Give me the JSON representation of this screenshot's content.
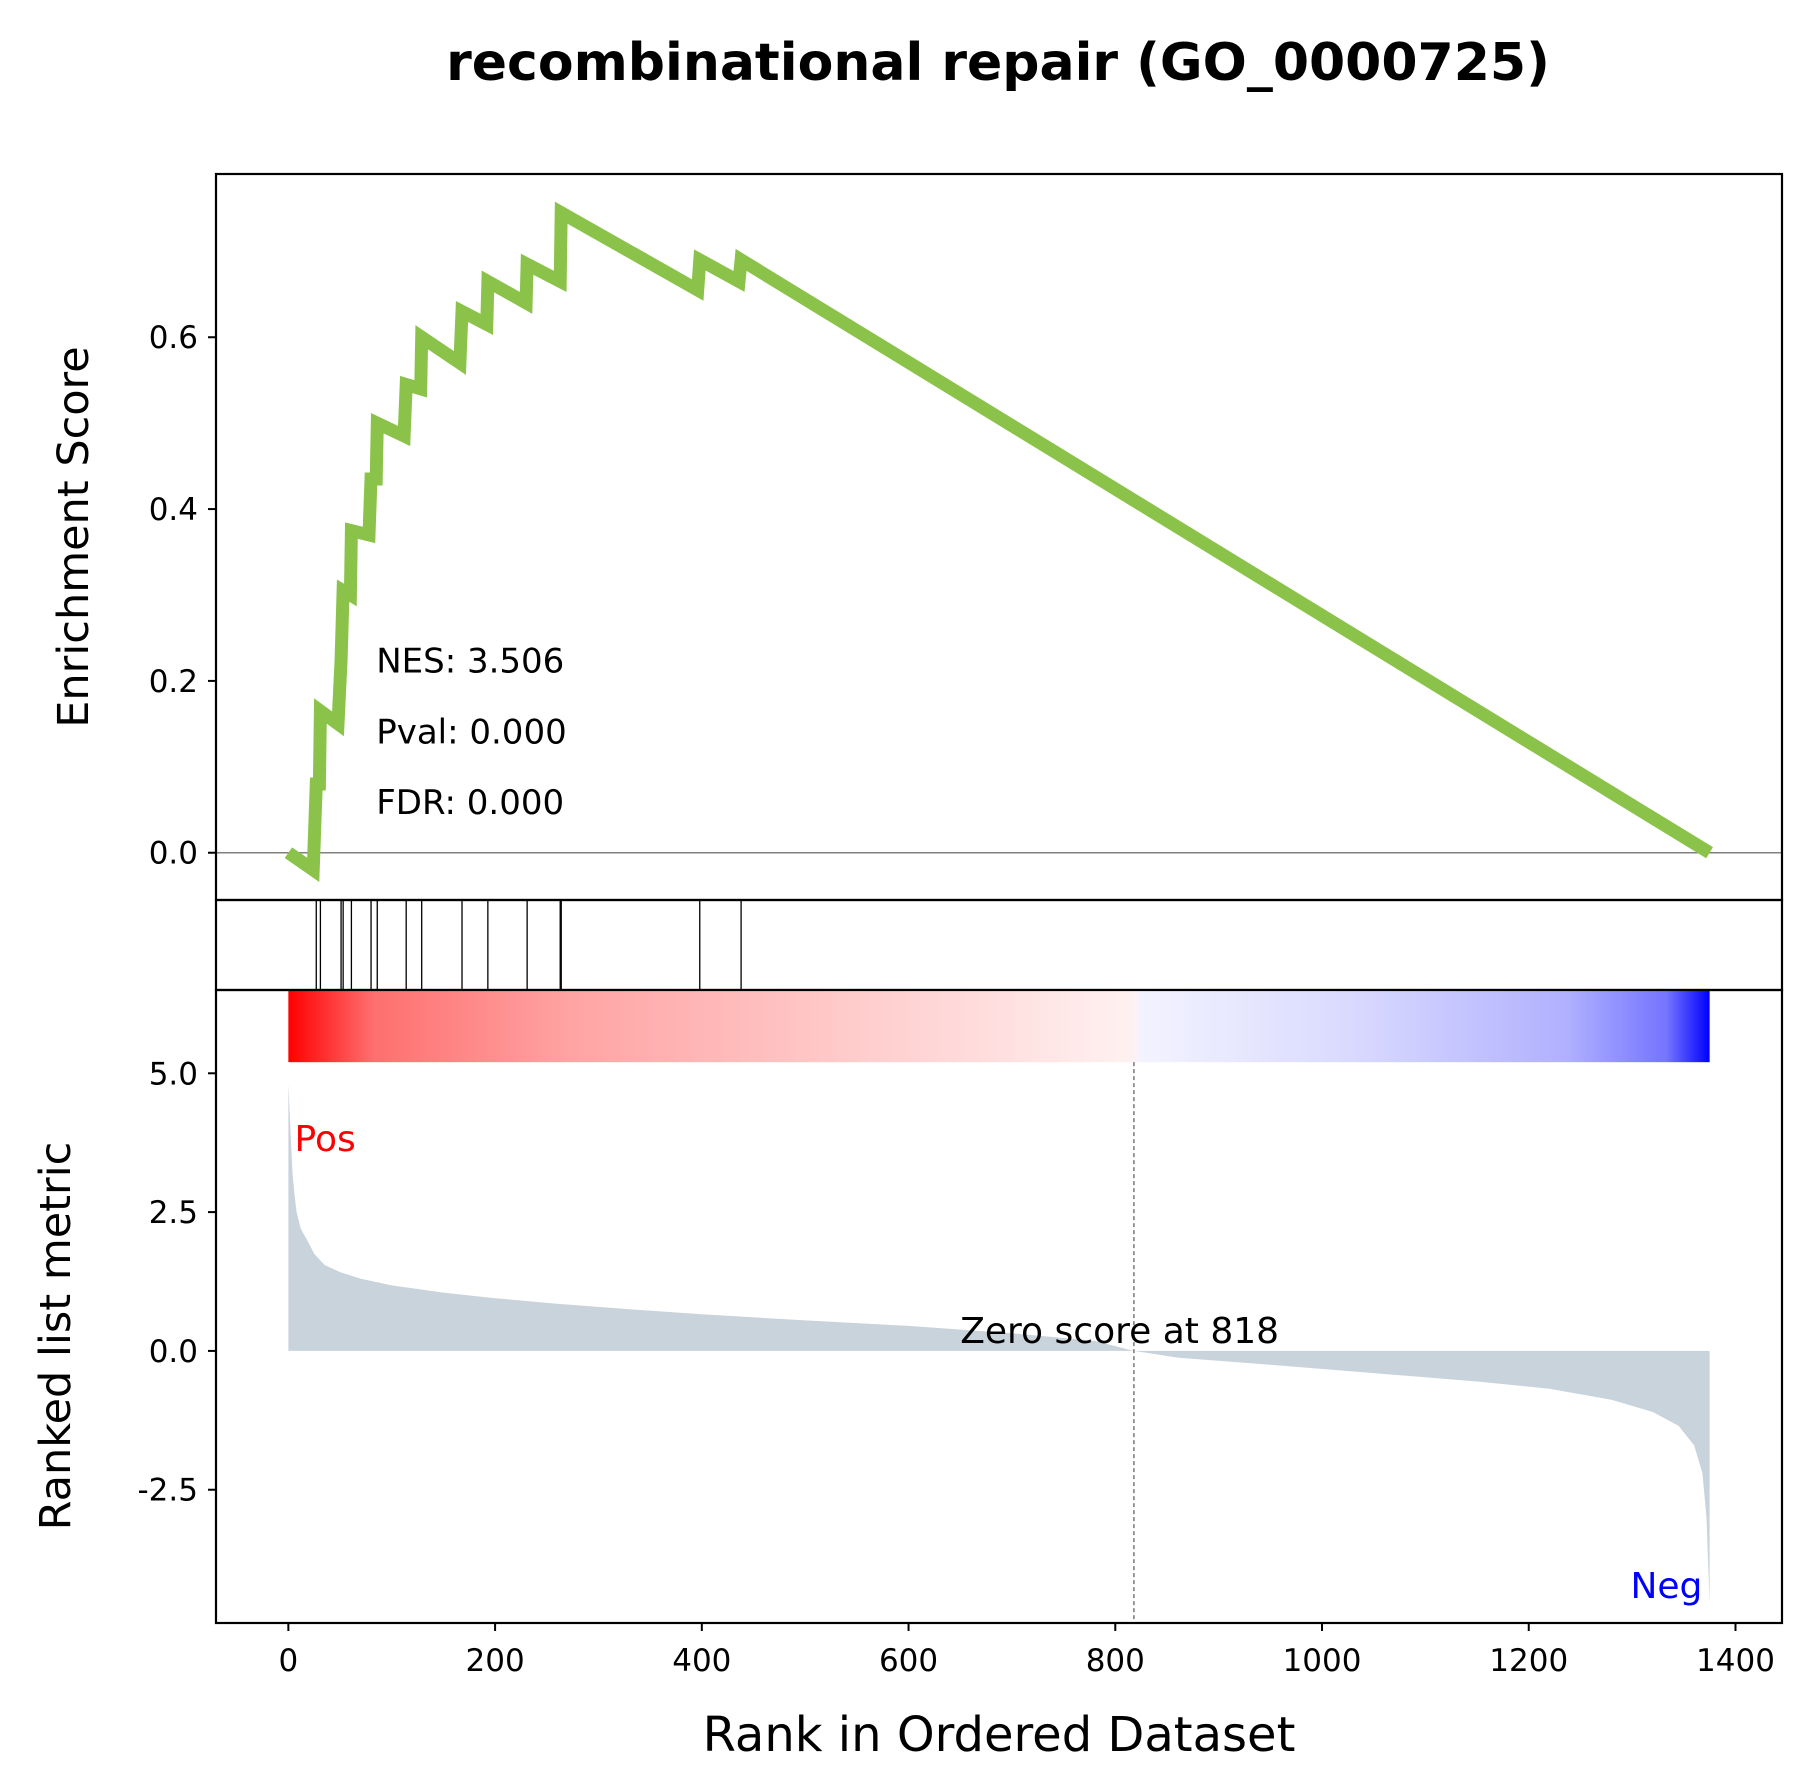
{
  "chart_data": {
    "type": "line",
    "title": "recombinational repair (GO_0000725)",
    "xlabel": "Rank in Ordered Dataset",
    "xlim": [
      -70,
      1445
    ],
    "x_ticks": [
      "0",
      "200",
      "400",
      "600",
      "800",
      "1000",
      "1200",
      "1400"
    ],
    "panels": {
      "enrichment": {
        "ylabel": "Enrichment Score",
        "ylim": [
          -0.055,
          0.79
        ],
        "y_ticks": [
          "0.0",
          "0.2",
          "0.4",
          "0.6"
        ],
        "line_color": "#8bc34a",
        "points": [
          [
            0,
            0.0
          ],
          [
            24,
            -0.02
          ],
          [
            27,
            0.08
          ],
          [
            30,
            0.08
          ],
          [
            31,
            0.165
          ],
          [
            48,
            0.15
          ],
          [
            51,
            0.225
          ],
          [
            53,
            0.305
          ],
          [
            60,
            0.3
          ],
          [
            61,
            0.375
          ],
          [
            78,
            0.37
          ],
          [
            80,
            0.435
          ],
          [
            85,
            0.435
          ],
          [
            86,
            0.5
          ],
          [
            112,
            0.485
          ],
          [
            114,
            0.545
          ],
          [
            128,
            0.54
          ],
          [
            129,
            0.6
          ],
          [
            166,
            0.57
          ],
          [
            168,
            0.63
          ],
          [
            192,
            0.615
          ],
          [
            193,
            0.665
          ],
          [
            230,
            0.64
          ],
          [
            231,
            0.685
          ],
          [
            263,
            0.665
          ],
          [
            264,
            0.745
          ],
          [
            396,
            0.655
          ],
          [
            398,
            0.69
          ],
          [
            436,
            0.665
          ],
          [
            438,
            0.69
          ],
          [
            1375,
            0.0
          ]
        ],
        "stats": [
          {
            "label": "NES: 3.506",
            "y": 0.21
          },
          {
            "label": "Pval: 0.000",
            "y": 0.127
          },
          {
            "label": "FDR: 0.000",
            "y": 0.045
          }
        ]
      },
      "hits": {
        "ranks": [
          27,
          31,
          51,
          53,
          61,
          80,
          86,
          114,
          129,
          168,
          193,
          231,
          263,
          264,
          398,
          438
        ]
      },
      "ranked_metric": {
        "ylabel": "Ranked list metric",
        "ylim": [
          -4.9,
          6.5
        ],
        "y_ticks": [
          "5.0",
          "2.5",
          "0.0",
          "-2.5"
        ],
        "fill_color": "#c9d3dc",
        "bar_range": [
          5.2,
          6.5
        ],
        "zero_cross": 818,
        "zero_label": "Zero score at 818",
        "pos_label": "Pos",
        "neg_label": "Neg",
        "pos_color": "#ff0000",
        "neg_color": "#0000ff",
        "curve": [
          [
            0,
            4.8
          ],
          [
            2,
            4.0
          ],
          [
            4,
            3.2
          ],
          [
            6,
            2.8
          ],
          [
            8,
            2.5
          ],
          [
            12,
            2.2
          ],
          [
            18,
            2.0
          ],
          [
            25,
            1.75
          ],
          [
            35,
            1.55
          ],
          [
            50,
            1.42
          ],
          [
            70,
            1.3
          ],
          [
            100,
            1.18
          ],
          [
            150,
            1.05
          ],
          [
            200,
            0.95
          ],
          [
            260,
            0.85
          ],
          [
            330,
            0.75
          ],
          [
            400,
            0.66
          ],
          [
            500,
            0.55
          ],
          [
            600,
            0.45
          ],
          [
            700,
            0.32
          ],
          [
            780,
            0.18
          ],
          [
            818,
            0.0
          ],
          [
            860,
            -0.12
          ],
          [
            950,
            -0.25
          ],
          [
            1050,
            -0.4
          ],
          [
            1150,
            -0.55
          ],
          [
            1220,
            -0.68
          ],
          [
            1280,
            -0.88
          ],
          [
            1320,
            -1.1
          ],
          [
            1345,
            -1.35
          ],
          [
            1360,
            -1.7
          ],
          [
            1368,
            -2.2
          ],
          [
            1372,
            -3.0
          ],
          [
            1375,
            -4.55
          ]
        ]
      }
    }
  }
}
